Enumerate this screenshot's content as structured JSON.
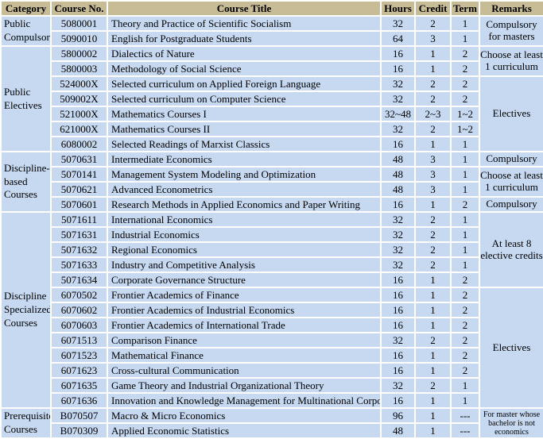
{
  "table": {
    "colors": {
      "header_bg": "#C8BC97",
      "cell_bg": "#C6D9F1",
      "border": "#FFFFFF",
      "text": "#000000"
    },
    "headers": [
      "Category",
      "Course No.",
      "Course Title",
      "Hours",
      "Credit",
      "Term",
      "Remarks"
    ],
    "categories": [
      {
        "label": "Public Compulsory",
        "rowspan": 2
      },
      {
        "label": "Public Electives",
        "rowspan": 7
      },
      {
        "label": "Discipline-based Courses",
        "rowspan": 4
      },
      {
        "label": "Discipline Specialized Courses",
        "rowspan": 13
      },
      {
        "label": "Prerequisite Courses",
        "rowspan": 2
      }
    ],
    "remarks": [
      {
        "label": "Compulsory for masters",
        "rowspan": 2,
        "small": false
      },
      {
        "label": "Choose at least 1 curriculum",
        "rowspan": 2,
        "small": false
      },
      {
        "label": "Electives",
        "rowspan": 5,
        "small": false
      },
      {
        "label": "Compulsory",
        "rowspan": 1,
        "small": false
      },
      {
        "label": "Choose at least 1 curriculum",
        "rowspan": 2,
        "small": false
      },
      {
        "label": "Compulsory",
        "rowspan": 1,
        "small": false
      },
      {
        "label": "At least 8 elective credits",
        "rowspan": 5,
        "small": false
      },
      {
        "label": "Electives",
        "rowspan": 8,
        "small": false
      },
      {
        "label": "For master whose bachelor is not economics",
        "rowspan": 2,
        "small": true
      }
    ],
    "rows": [
      [
        "5080001",
        "Theory and Practice of Scientific Socialism",
        "32",
        "2",
        "1"
      ],
      [
        "5090010",
        "English for Postgraduate Students",
        "64",
        "3",
        "1"
      ],
      [
        "5800002",
        "Dialectics of Nature",
        "16",
        "1",
        "2"
      ],
      [
        "5800003",
        "Methodology of Social Science",
        "16",
        "1",
        "2"
      ],
      [
        "524000X",
        "Selected curriculum on Applied Foreign Language",
        "32",
        "2",
        "2"
      ],
      [
        "509002X",
        "Selected curriculum on Computer Science",
        "32",
        "2",
        "2"
      ],
      [
        "521000X",
        "Mathematics Courses  I",
        "32~48",
        "2~3",
        "1~2"
      ],
      [
        "621000X",
        "Mathematics Courses II",
        "32",
        "2",
        "1~2"
      ],
      [
        "6080002",
        "Selected Readings of Marxist Classics",
        "16",
        "1",
        "1"
      ],
      [
        "5070631",
        "Intermediate Economics",
        "48",
        "3",
        "1"
      ],
      [
        "5070141",
        "Management System Modeling and Optimization",
        "48",
        "3",
        "1"
      ],
      [
        "5070621",
        "Advanced Econometrics",
        "48",
        "3",
        "1"
      ],
      [
        "5070601",
        "Research Methods in Applied Economics and Paper Writing",
        "16",
        "1",
        "2"
      ],
      [
        "5071611",
        "International Economics",
        "32",
        "2",
        "1"
      ],
      [
        "5071631",
        "Industrial Economics",
        "32",
        "2",
        "1"
      ],
      [
        "5071632",
        "Regional Economics",
        "32",
        "2",
        "1"
      ],
      [
        "5071633",
        "Industry and Competitive Analysis",
        "32",
        "2",
        "1"
      ],
      [
        "5071634",
        "Corporate Governance Structure",
        "16",
        "1",
        "2"
      ],
      [
        "6070502",
        "Frontier Academics  of Finance",
        "16",
        "1",
        "2"
      ],
      [
        "6070602",
        "Frontier Academics  of Industrial Economics",
        "16",
        "1",
        "2"
      ],
      [
        "6070603",
        "Frontier Academics  of International Trade",
        "16",
        "1",
        "2"
      ],
      [
        "6071513",
        "Comparison Finance",
        "32",
        "2",
        "2"
      ],
      [
        "6071523",
        "Mathematical Finance",
        "16",
        "1",
        "2"
      ],
      [
        "6071623",
        "Cross-cultural Communication",
        "16",
        "1",
        "2"
      ],
      [
        "6071635",
        "Game Theory and Industrial Organizational Theory",
        "32",
        "2",
        "1"
      ],
      [
        "6071636",
        "Innovation and Knowledge Management for Multinational Corporation",
        "16",
        "1",
        "1"
      ],
      [
        "B070507",
        "Macro & Micro Economics",
        "96",
        "1",
        "---"
      ],
      [
        "B070309",
        "Applied Economic Statistics",
        "48",
        "1",
        "---"
      ]
    ]
  }
}
